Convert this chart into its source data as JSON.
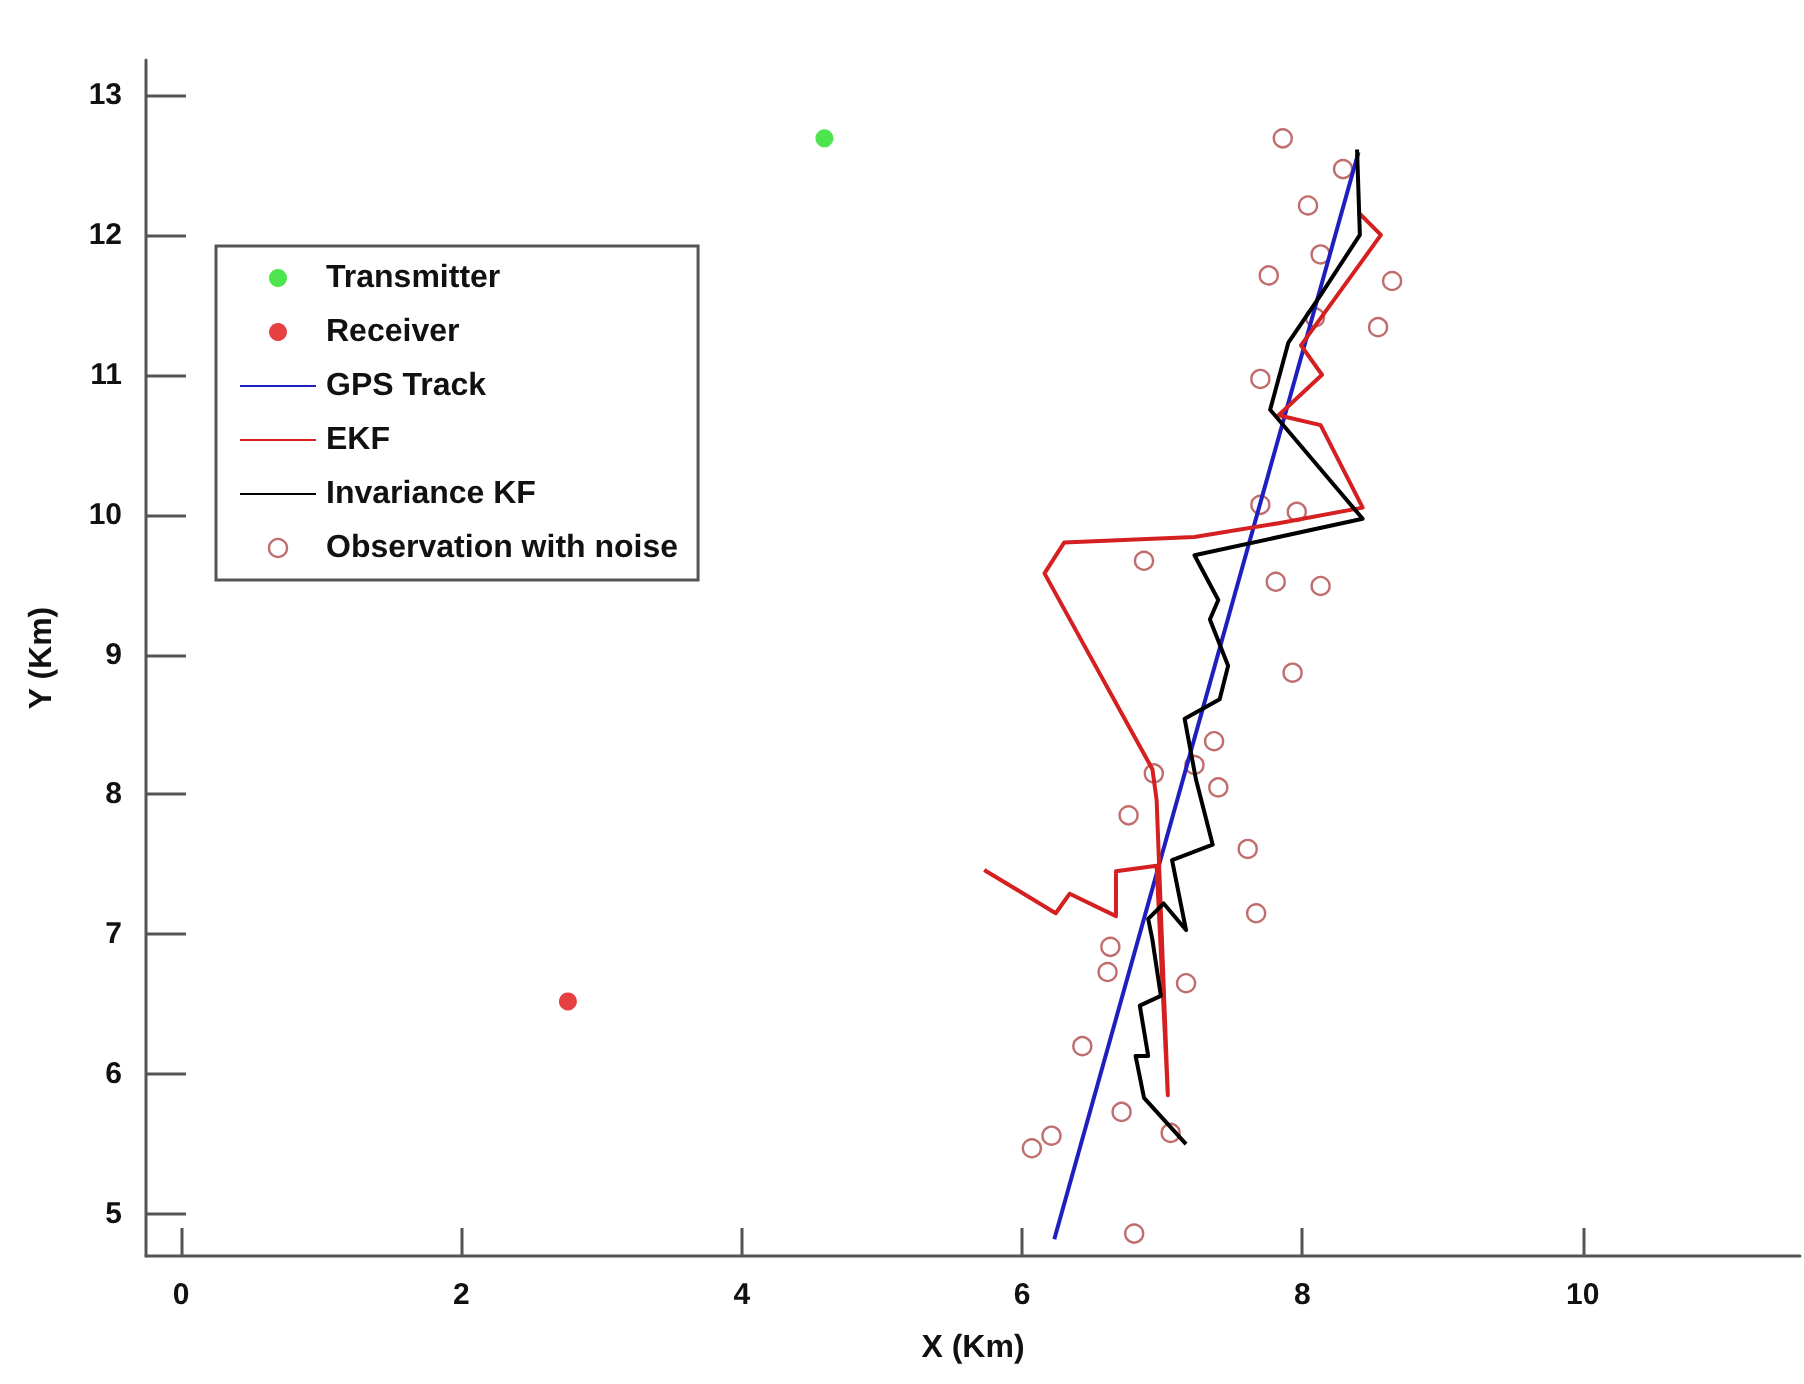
{
  "chart_data": {
    "type": "line",
    "xlabel": "X (Km)",
    "ylabel": "Y (Km)",
    "xlim": [
      -0.25,
      11.55
    ],
    "xticks": [
      0,
      2,
      4,
      6,
      8,
      10
    ],
    "ylim": [
      4.7,
      13.25
    ],
    "yticks": [
      5,
      6,
      7,
      8,
      9,
      10,
      11,
      12,
      13
    ],
    "grid": false,
    "legend": "top left",
    "series": [
      {
        "name": "Transmitter",
        "type": "scatter",
        "marker": "circle",
        "color": "#22dd22",
        "x": [
          4.59
        ],
        "values": [
          12.69
        ]
      },
      {
        "name": "Receiver",
        "type": "scatter",
        "marker": "circle",
        "color": "#e01010",
        "x": [
          2.76
        ],
        "values": [
          6.52
        ]
      },
      {
        "name": "GPS Track",
        "marker": "none",
        "color": "#1f1fbf",
        "x": [
          6.23,
          8.4
        ],
        "values": [
          4.82,
          12.59
        ]
      },
      {
        "name": "EKF",
        "marker": "none",
        "color": "#d42020",
        "x": [
          5.73,
          6.24,
          6.34,
          6.67,
          6.67,
          6.96,
          7.04,
          6.96,
          6.93,
          6.16,
          6.3,
          7.23,
          7.84,
          8.43,
          8.13,
          7.83,
          8.14,
          7.99,
          8.46,
          8.56,
          8.4
        ],
        "values": [
          7.46,
          7.15,
          7.29,
          7.13,
          7.45,
          7.49,
          5.85,
          7.96,
          8.18,
          9.58,
          9.8,
          9.84,
          9.94,
          10.05,
          10.64,
          10.71,
          11.0,
          11.21,
          11.86,
          12.0,
          12.16
        ]
      },
      {
        "name": "Invariance KF",
        "marker": "none",
        "color": "#000000",
        "x": [
          7.17,
          6.87,
          6.81,
          6.9,
          6.84,
          6.99,
          6.93,
          6.9,
          7.01,
          7.17,
          7.07,
          7.36,
          7.24,
          7.16,
          7.41,
          7.47,
          7.34,
          7.4,
          7.23,
          8.43,
          7.77,
          7.9,
          8.13,
          8.41,
          8.39
        ],
        "values": [
          5.5,
          5.83,
          6.13,
          6.13,
          6.49,
          6.56,
          6.96,
          7.11,
          7.22,
          7.03,
          7.53,
          7.64,
          8.11,
          8.54,
          8.68,
          8.92,
          9.25,
          9.39,
          9.71,
          9.97,
          10.75,
          11.23,
          11.57,
          12.0,
          12.61
        ]
      },
      {
        "name": "Observation with noise",
        "type": "scatter",
        "marker": "circle",
        "color": "#b04848",
        "x": [
          7.86,
          8.29,
          8.04,
          8.13,
          7.76,
          8.64,
          8.54,
          8.09,
          7.7,
          7.7,
          7.96,
          6.87,
          7.81,
          8.13,
          7.93,
          7.37,
          7.4,
          7.23,
          6.94,
          6.76,
          7.61,
          7.67,
          6.63,
          6.61,
          7.17,
          6.43,
          6.71,
          6.21,
          6.07,
          7.06,
          6.8
        ],
        "values": [
          12.69,
          12.47,
          12.21,
          11.86,
          11.71,
          11.67,
          11.34,
          11.41,
          10.97,
          10.07,
          10.02,
          9.67,
          9.52,
          9.49,
          8.87,
          8.38,
          8.05,
          8.21,
          8.15,
          7.85,
          7.61,
          7.15,
          6.91,
          6.73,
          6.65,
          6.2,
          5.73,
          5.56,
          5.47,
          5.58,
          4.86
        ]
      }
    ]
  }
}
